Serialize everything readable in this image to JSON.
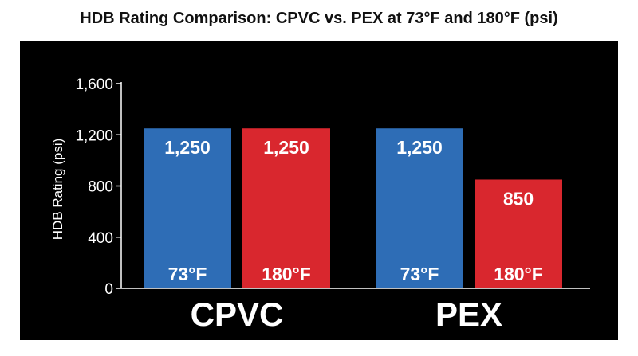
{
  "chart_data": {
    "type": "bar",
    "title": "HDB Rating Comparison: CPVC vs. PEX at 73°F and 180°F (psi)",
    "ylabel": "HDB Rating (psi)",
    "xlabel": "",
    "ylim": [
      0,
      1600
    ],
    "yticks": [
      0,
      400,
      800,
      1200,
      1600
    ],
    "ytick_labels": [
      "0",
      "400",
      "800",
      "1,200",
      "1,600"
    ],
    "categories": [
      "CPVC",
      "PEX"
    ],
    "series": [
      {
        "name": "73°F",
        "color": "#2e6db6",
        "values": [
          1250,
          1250
        ],
        "labels": [
          "1,250",
          "1,250"
        ]
      },
      {
        "name": "180°F",
        "color": "#d9272e",
        "values": [
          1250,
          850
        ],
        "labels": [
          "1,250",
          "850"
        ]
      }
    ],
    "grid": false,
    "legend": "none",
    "background": "#000000"
  }
}
